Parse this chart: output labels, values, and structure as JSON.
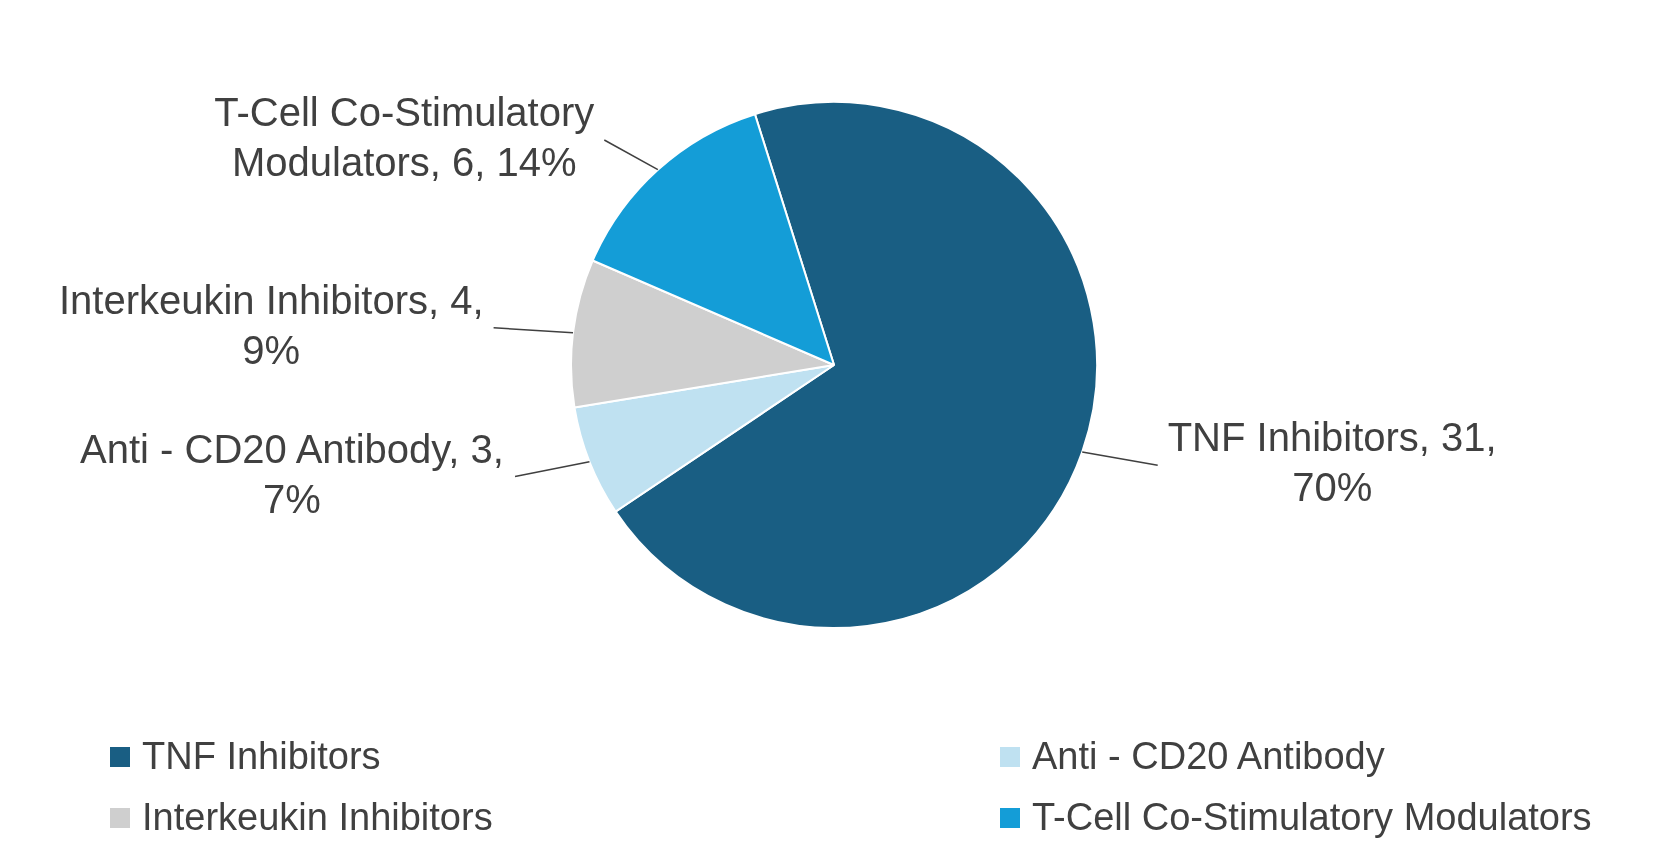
{
  "chart_data": {
    "type": "pie",
    "categories": [
      "TNF Inhibitors",
      "Anti - CD20 Antibody",
      "Interkeukin Inhibitors",
      "T-Cell Co-Stimulatory Modulators"
    ],
    "values": [
      31,
      3,
      4,
      6
    ],
    "colors": [
      "#195e83",
      "#bfe1f1",
      "#cfcfcf",
      "#149dd7"
    ],
    "value_labels": [
      "TNF Inhibitors, 31, 70%",
      "Anti - CD20 Antibody, 3, 7%",
      "Interkeukin Inhibitors, 4, 9%",
      "T-Cell Co-Stimulatory Modulators, 6, 14%"
    ],
    "legend": "bottom"
  }
}
